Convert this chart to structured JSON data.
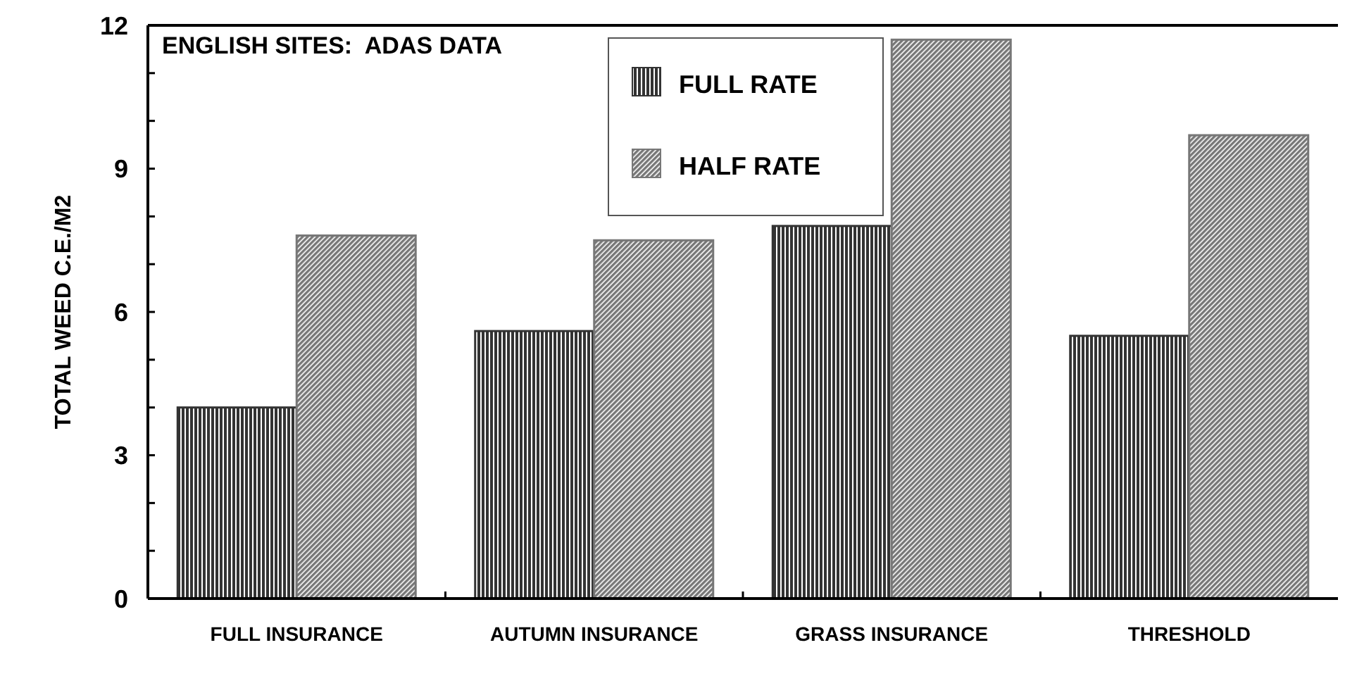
{
  "chart_data": {
    "type": "bar",
    "title": "ENGLISH SITES:  ADAS DATA",
    "ylabel": "TOTAL WEED C.E./M2",
    "categories": [
      "FULL INSURANCE",
      "AUTUMN INSURANCE",
      "GRASS INSURANCE",
      "THRESHOLD"
    ],
    "series": [
      {
        "name": "FULL RATE",
        "color": "#333333",
        "values": [
          4.0,
          5.6,
          7.8,
          5.5
        ]
      },
      {
        "name": "HALF RATE",
        "color": "#777777",
        "values": [
          7.6,
          7.5,
          11.7,
          9.7
        ]
      }
    ],
    "ylim": [
      0,
      12
    ],
    "yticks": [
      0,
      {
        "value": 1,
        "label": null
      },
      {
        "value": 2,
        "label": null
      },
      3,
      {
        "value": 4,
        "label": null
      },
      {
        "value": 5,
        "label": null
      },
      6,
      {
        "value": 7,
        "label": null
      },
      {
        "value": 8,
        "label": null
      },
      9,
      {
        "value": 10,
        "label": null
      },
      {
        "value": 11,
        "label": null
      },
      12
    ],
    "legend": "top"
  }
}
